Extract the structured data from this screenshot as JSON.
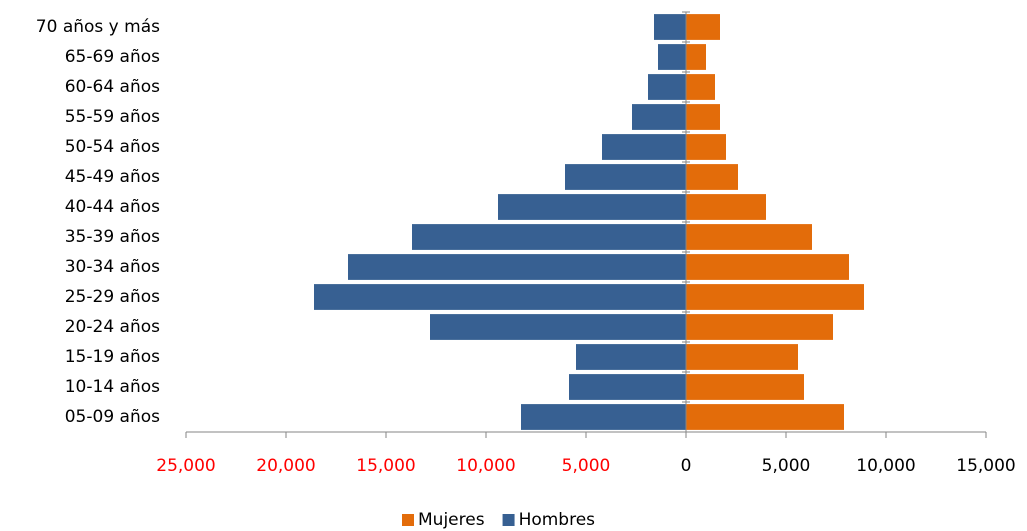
{
  "chart_data": {
    "type": "bar",
    "orientation": "horizontal",
    "categories": [
      "70 años y más",
      "65-69 años",
      "60-64 años",
      "55-59 años",
      "50-54 años",
      "45-49 años",
      "40-44 años",
      "35-39 años",
      "30-34 años",
      "25-29 años",
      "20-24 años",
      "15-19 años",
      "10-14 años",
      "05-09 años"
    ],
    "series": [
      {
        "name": "Mujeres",
        "color": "#e36c0a",
        "values": [
          1700,
          1000,
          1450,
          1700,
          2000,
          2600,
          4000,
          6300,
          8150,
          8900,
          7350,
          5600,
          5900,
          7900
        ]
      },
      {
        "name": "Hombres",
        "color": "#376092",
        "values": [
          -1600,
          -1400,
          -1900,
          -2700,
          -4200,
          -6050,
          -9400,
          -13700,
          -16900,
          -18600,
          -12800,
          -5500,
          -5850,
          -8250
        ]
      }
    ],
    "xlim": [
      -25000,
      15000
    ],
    "xticks": [
      {
        "value": -25000,
        "label": "25,000"
      },
      {
        "value": -20000,
        "label": "20,000"
      },
      {
        "value": -15000,
        "label": "15,000"
      },
      {
        "value": -10000,
        "label": "10,000"
      },
      {
        "value": -5000,
        "label": "5,000"
      },
      0,
      {
        "value": 5000,
        "label": "5,000"
      },
      {
        "value": 10000,
        "label": "10,000"
      },
      {
        "value": 15000,
        "label": "15,000"
      }
    ],
    "negative_tick_label_color": "#ff0000",
    "legend": "bottom"
  }
}
